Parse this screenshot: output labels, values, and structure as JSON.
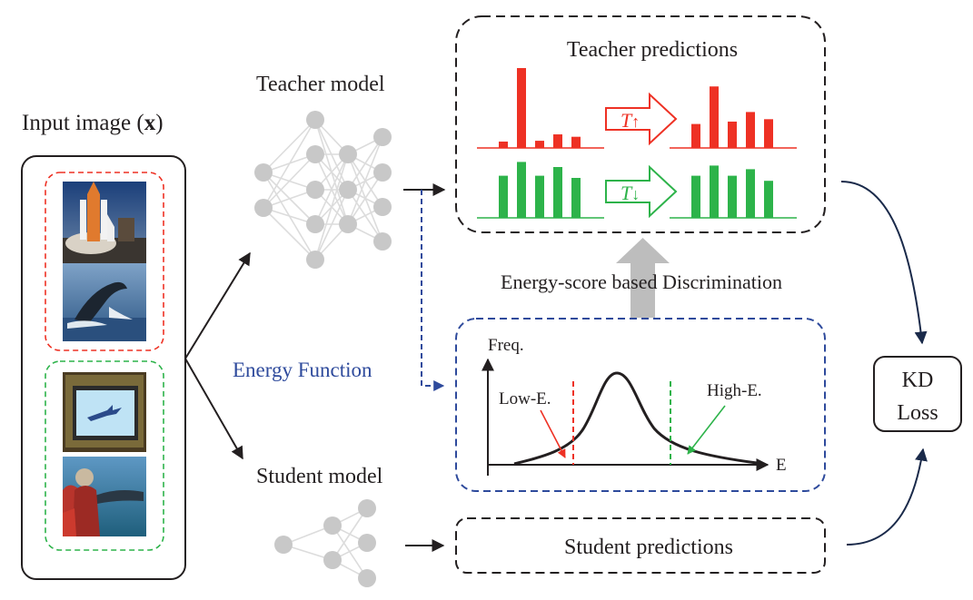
{
  "input": {
    "title_prefix": "Input image (",
    "title_symbol": "x",
    "title_suffix": ")",
    "images": [
      "space-shuttle-photo",
      "whale-breach-photo",
      "airplane-on-monitor-photo",
      "people-watching-whale-photo"
    ]
  },
  "teacher": {
    "label": "Teacher model"
  },
  "student": {
    "label": "Student model"
  },
  "energy_function": {
    "label": "Energy Function"
  },
  "teacher_predictions": {
    "title": "Teacher predictions",
    "high_temp_symbol": "T",
    "high_temp_arrow": "↑",
    "low_temp_symbol": "T",
    "low_temp_arrow": "↓",
    "red_before": [
      0.08,
      1.0,
      0.09,
      0.17,
      0.14
    ],
    "red_after": [
      0.3,
      0.77,
      0.33,
      0.45,
      0.36
    ],
    "green_before": [
      0.58,
      0.77,
      0.58,
      0.7,
      0.55
    ],
    "green_after": [
      0.58,
      0.72,
      0.58,
      0.67,
      0.51
    ]
  },
  "discrimination": {
    "label": "Energy-score based Discrimination"
  },
  "energy_plot": {
    "y_label": "Freq.",
    "x_label": "E",
    "low_label": "Low-E.",
    "high_label": "High-E."
  },
  "student_predictions": {
    "title": "Student predictions"
  },
  "loss": {
    "line1": "KD",
    "line2": "Loss"
  },
  "colors": {
    "red": "#ee3124",
    "green": "#2db34a",
    "blue_dash": "#2e4a9c",
    "energy_text": "#2e4a9c",
    "node": "#c8c8c8",
    "edge": "#dcdcdc",
    "dark": "#231f20",
    "arrow_navy": "#1a2a4a",
    "gray_arrow": "#bdbdbd"
  }
}
